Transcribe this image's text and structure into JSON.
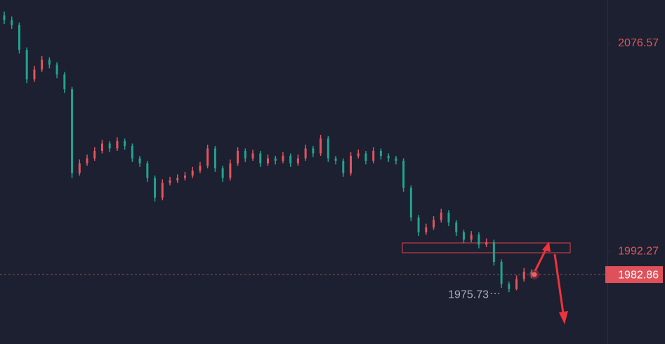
{
  "chart_data": {
    "type": "candlestick",
    "up_color": "#e0555f",
    "down_color": "#22a38f",
    "ylim": [
      1954.7,
      2094.2
    ],
    "yticks": [
      2076.57,
      1992.27
    ],
    "current": 1982.86,
    "low_label": 1975.73,
    "candles": [
      [
        2088,
        2089.5,
        2084.5,
        2086
      ],
      [
        2086,
        2087.5,
        2082.5,
        2084
      ],
      [
        2084,
        2085,
        2072.5,
        2074
      ],
      [
        2074,
        2075,
        2060.5,
        2062
      ],
      [
        2062,
        2067.5,
        2061,
        2066
      ],
      [
        2066,
        2071.5,
        2065,
        2070
      ],
      [
        2070,
        2071,
        2066.5,
        2068
      ],
      [
        2068,
        2069,
        2062.5,
        2064
      ],
      [
        2064,
        2065,
        2056.5,
        2058
      ],
      [
        2058,
        2059,
        2022,
        2024
      ],
      [
        2024,
        2029.5,
        2023,
        2028
      ],
      [
        2028,
        2031.5,
        2027,
        2030
      ],
      [
        2030,
        2034.5,
        2029,
        2033
      ],
      [
        2033,
        2037.5,
        2032,
        2036
      ],
      [
        2036,
        2037,
        2032.5,
        2034
      ],
      [
        2034,
        2038.5,
        2033,
        2037
      ],
      [
        2037,
        2038,
        2033.5,
        2035
      ],
      [
        2035,
        2036,
        2028.5,
        2030
      ],
      [
        2030,
        2031,
        2026.5,
        2028
      ],
      [
        2028,
        2029,
        2020.5,
        2022
      ],
      [
        2022,
        2023,
        2012.5,
        2014
      ],
      [
        2014,
        2021.5,
        2013,
        2020
      ],
      [
        2020,
        2022.5,
        2019,
        2021
      ],
      [
        2021,
        2023.5,
        2020,
        2022
      ],
      [
        2022,
        2024.5,
        2021,
        2023
      ],
      [
        2023,
        2026.5,
        2022,
        2025
      ],
      [
        2025,
        2028.5,
        2024,
        2027
      ],
      [
        2027,
        2035.5,
        2026,
        2034
      ],
      [
        2034,
        2035,
        2024.5,
        2026
      ],
      [
        2026,
        2027,
        2020.5,
        2022
      ],
      [
        2022,
        2029.5,
        2021,
        2028
      ],
      [
        2028,
        2034.5,
        2027,
        2033
      ],
      [
        2033,
        2034,
        2028.5,
        2030
      ],
      [
        2030,
        2033.5,
        2029,
        2032
      ],
      [
        2032,
        2033,
        2026.5,
        2028
      ],
      [
        2028,
        2031.5,
        2027,
        2030
      ],
      [
        2030,
        2031,
        2027.5,
        2029
      ],
      [
        2029,
        2032.5,
        2028,
        2031
      ],
      [
        2031,
        2032,
        2026.5,
        2028
      ],
      [
        2028,
        2031.5,
        2027,
        2030
      ],
      [
        2030,
        2035.5,
        2029,
        2034
      ],
      [
        2034,
        2035,
        2030.5,
        2032
      ],
      [
        2032,
        2039.5,
        2031,
        2038
      ],
      [
        2038,
        2039,
        2028.5,
        2030
      ],
      [
        2030,
        2031,
        2027.5,
        2029
      ],
      [
        2029,
        2030,
        2022.5,
        2024
      ],
      [
        2024,
        2032.5,
        2023,
        2031
      ],
      [
        2031,
        2033.5,
        2030,
        2032
      ],
      [
        2032,
        2033,
        2027.5,
        2029
      ],
      [
        2029,
        2034.5,
        2028,
        2033
      ],
      [
        2033,
        2034,
        2029.5,
        2031
      ],
      [
        2031,
        2032,
        2028.5,
        2030
      ],
      [
        2030,
        2031,
        2027.5,
        2029
      ],
      [
        2029,
        2030,
        2016.5,
        2018
      ],
      [
        2018,
        2019,
        2004.5,
        2006
      ],
      [
        2006,
        2007,
        1998.5,
        2000
      ],
      [
        2000,
        2003.5,
        1999,
        2002
      ],
      [
        2002,
        2006.5,
        2001,
        2005
      ],
      [
        2005,
        2009.5,
        2004,
        2008
      ],
      [
        2008,
        2009,
        2002.5,
        2004
      ],
      [
        2004,
        2005,
        1998.5,
        2000
      ],
      [
        2000,
        2001,
        1995.5,
        1997
      ],
      [
        1997,
        2000.5,
        1996,
        1999
      ],
      [
        1999,
        2000,
        1993.5,
        1995
      ],
      [
        1995,
        1997.5,
        1994,
        1996
      ],
      [
        1996,
        1997,
        1986.5,
        1988
      ],
      [
        1988,
        1989,
        1977.5,
        1979
      ],
      [
        1979,
        1980,
        1975.73,
        1977
      ],
      [
        1977,
        1982.5,
        1976.5,
        1981
      ],
      [
        1981,
        1985.5,
        1980,
        1984
      ],
      [
        1984,
        1985,
        1981.5,
        1982.86
      ]
    ]
  }
}
